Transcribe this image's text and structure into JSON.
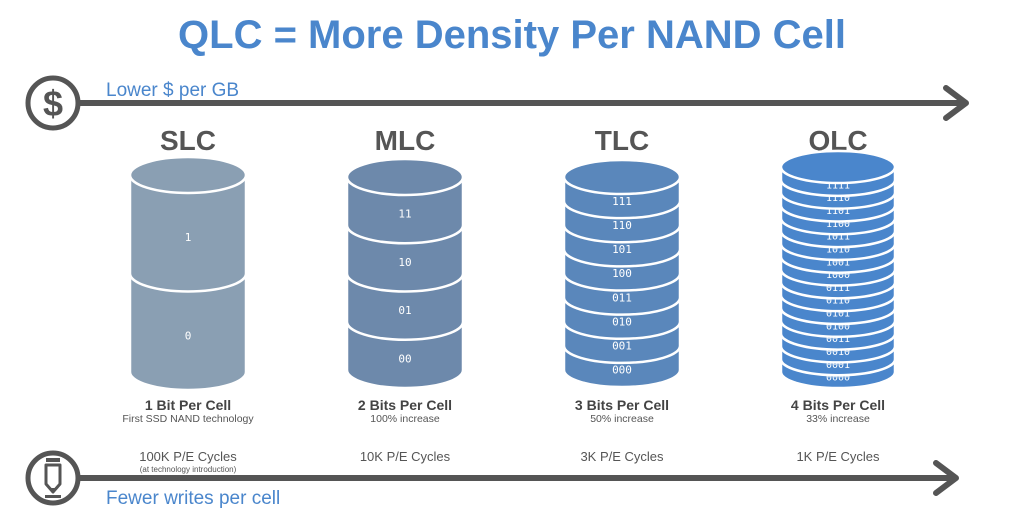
{
  "title": "QLC = More Density Per NAND Cell",
  "top_axis": {
    "label": "Lower $ per GB",
    "icon": "dollar-icon"
  },
  "bottom_axis": {
    "label": "Fewer writes per cell",
    "icon": "pencil-icon"
  },
  "columns": [
    {
      "name": "SLC",
      "bits": "1 Bit Per Cell",
      "desc": "First SSD NAND technology",
      "pe": "100K P/E Cycles",
      "note": "(at technology introduction)",
      "color": "#8a9fb3",
      "levels": [
        "1",
        "0"
      ]
    },
    {
      "name": "MLC",
      "bits": "2 Bits Per Cell",
      "desc": "100% increase",
      "pe": "10K P/E Cycles",
      "note": "",
      "color": "#6d89ab",
      "levels": [
        "11",
        "10",
        "01",
        "00"
      ]
    },
    {
      "name": "TLC",
      "bits": "3 Bits Per Cell",
      "desc": "50% increase",
      "pe": "3K P/E Cycles",
      "note": "",
      "color": "#5a87bb",
      "levels": [
        "111",
        "110",
        "101",
        "100",
        "011",
        "010",
        "001",
        "000"
      ]
    },
    {
      "name": "QLC",
      "bits": "4 Bits Per Cell",
      "desc": "33% increase",
      "pe": "1K P/E Cycles",
      "note": "",
      "color": "#4a86cc",
      "levels": [
        "1111",
        "1110",
        "1101",
        "1100",
        "1011",
        "1010",
        "1001",
        "1000",
        "0111",
        "0110",
        "0101",
        "0100",
        "0011",
        "0010",
        "0001",
        "0000"
      ]
    }
  ]
}
